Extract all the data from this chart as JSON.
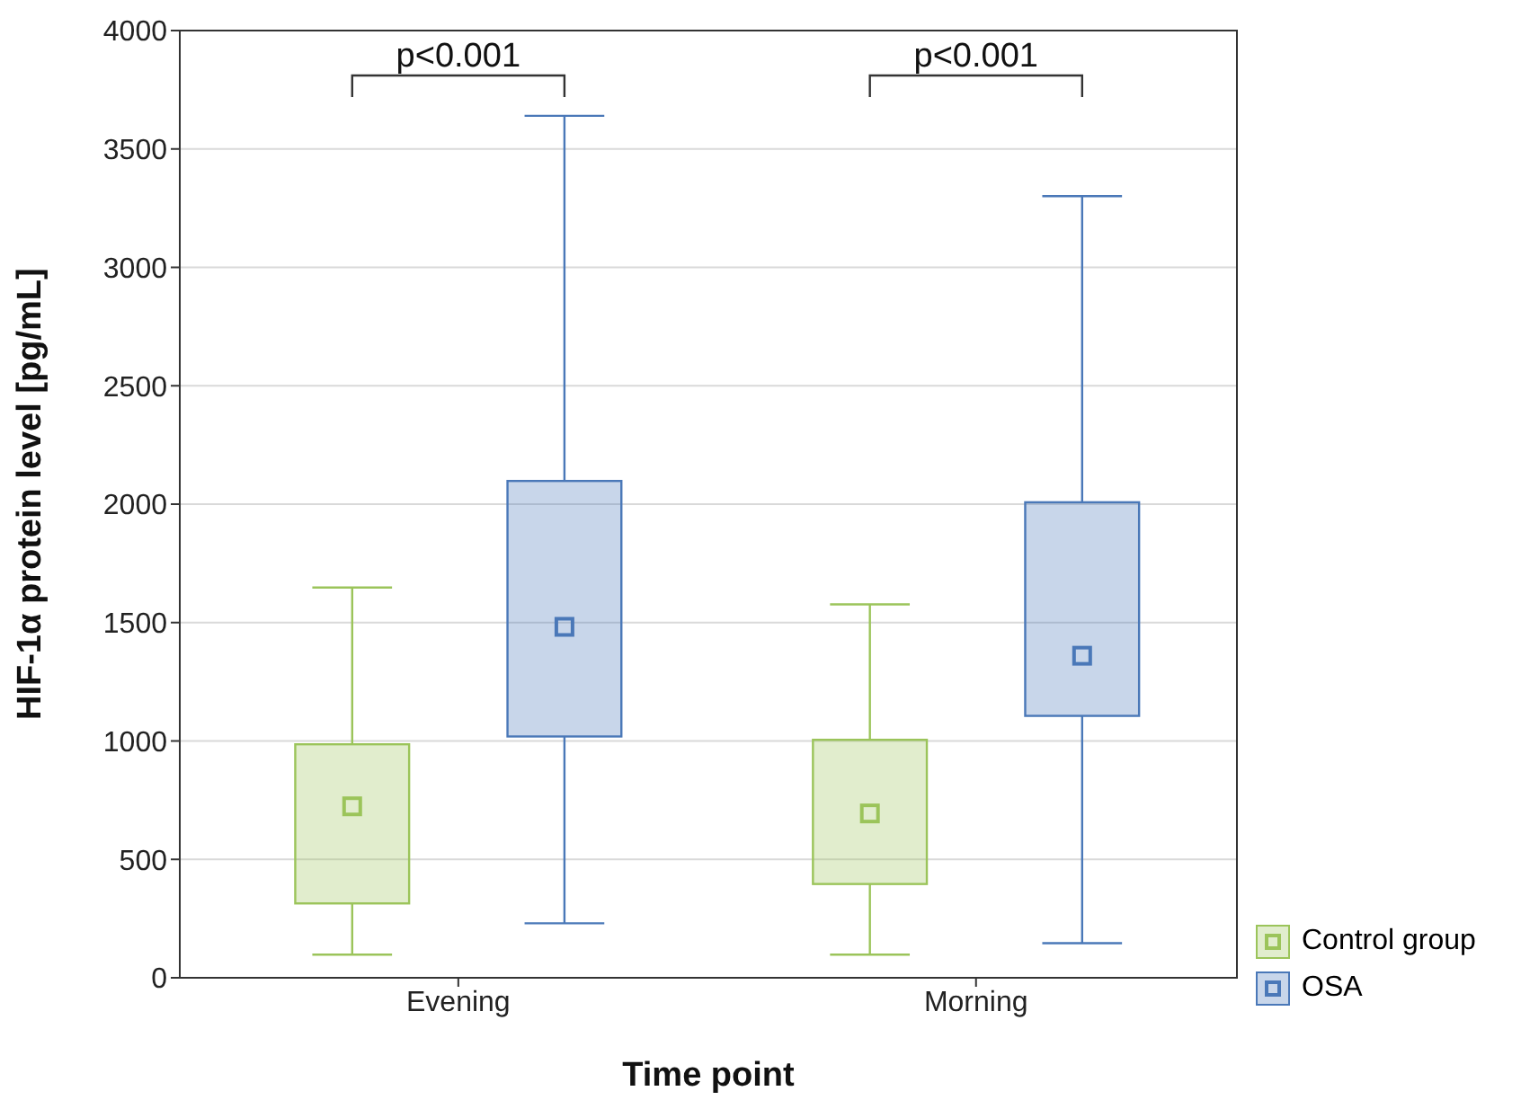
{
  "chart_data": {
    "type": "box",
    "xlabel": "Time point",
    "ylabel": "HIF-1α protein level [pg/mL]",
    "categories": [
      "Evening",
      "Morning"
    ],
    "series": [
      {
        "name": "Control group",
        "color": "#9bc45a",
        "boxes": [
          {
            "low": 98,
            "q1": 314,
            "median": 724,
            "q3": 986,
            "high": 1648
          },
          {
            "low": 98,
            "q1": 396,
            "median": 694,
            "q3": 1005,
            "high": 1577
          }
        ]
      },
      {
        "name": "OSA",
        "color": "#4a78b8",
        "boxes": [
          {
            "low": 230,
            "q1": 1019,
            "median": 1482,
            "q3": 2098,
            "high": 3640
          },
          {
            "low": 146,
            "q1": 1106,
            "median": 1360,
            "q3": 2008,
            "high": 3301
          }
        ]
      }
    ],
    "ylim": [
      0,
      4000
    ],
    "yticks": [
      0,
      500,
      1000,
      1500,
      2000,
      2500,
      3000,
      3500,
      4000
    ],
    "grid": "y",
    "legend": "bottom right",
    "marker": "square",
    "annotations": [
      "p<0.001",
      "p<0.001"
    ]
  }
}
